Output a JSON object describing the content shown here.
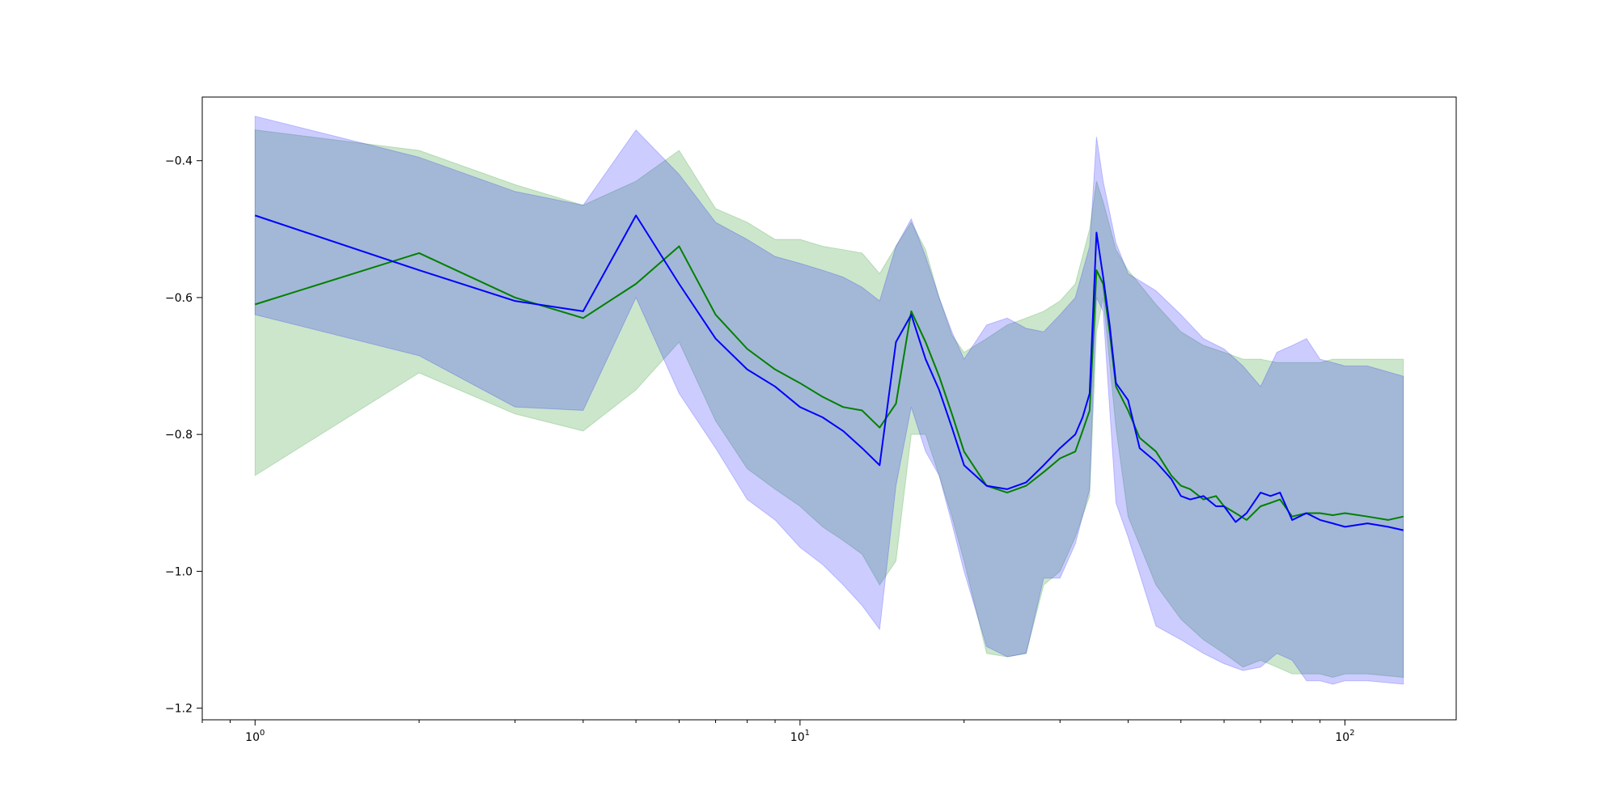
{
  "chart_data": {
    "type": "line",
    "title": "",
    "xlabel": "",
    "ylabel": "",
    "xscale": "log",
    "xlim": [
      0.8,
      160
    ],
    "ylim": [
      -1.217,
      -0.307
    ],
    "grid": false,
    "x_major_ticks": [
      {
        "value": 1,
        "base": "10",
        "exp": "0"
      },
      {
        "value": 10,
        "base": "10",
        "exp": "1"
      },
      {
        "value": 100,
        "base": "10",
        "exp": "2"
      }
    ],
    "y_ticks": [
      {
        "value": -0.4,
        "label": "−0.4"
      },
      {
        "value": -0.6,
        "label": "−0.6"
      },
      {
        "value": -0.8,
        "label": "−0.8"
      },
      {
        "value": -1.0,
        "label": "−1.0"
      },
      {
        "value": -1.2,
        "label": "−1.2"
      }
    ],
    "bands": [
      {
        "color": "#008000",
        "opacity": 0.2,
        "x": [
          1,
          2,
          3,
          4,
          5,
          6,
          7,
          8,
          9,
          10,
          11,
          12,
          13,
          14,
          15,
          16,
          17,
          18,
          19,
          20,
          22,
          24,
          26,
          28,
          30,
          32,
          34,
          35,
          36,
          38,
          40,
          45,
          50,
          55,
          60,
          65,
          70,
          75,
          80,
          85,
          90,
          95,
          100,
          110,
          128
        ],
        "upper": [
          -0.355,
          -0.385,
          -0.435,
          -0.465,
          -0.43,
          -0.385,
          -0.47,
          -0.49,
          -0.515,
          -0.515,
          -0.525,
          -0.53,
          -0.535,
          -0.565,
          -0.525,
          -0.49,
          -0.53,
          -0.6,
          -0.655,
          -0.68,
          -0.66,
          -0.64,
          -0.63,
          -0.62,
          -0.605,
          -0.58,
          -0.5,
          -0.43,
          -0.46,
          -0.53,
          -0.56,
          -0.61,
          -0.65,
          -0.67,
          -0.68,
          -0.69,
          -0.69,
          -0.695,
          -0.695,
          -0.695,
          -0.695,
          -0.69,
          -0.69,
          -0.69,
          -0.69
        ],
        "lower": [
          -0.86,
          -0.71,
          -0.77,
          -0.795,
          -0.735,
          -0.665,
          -0.78,
          -0.85,
          -0.88,
          -0.905,
          -0.935,
          -0.955,
          -0.975,
          -1.02,
          -0.985,
          -0.8,
          -0.8,
          -0.86,
          -0.92,
          -0.985,
          -1.12,
          -1.125,
          -1.12,
          -1.02,
          -1.0,
          -0.95,
          -0.89,
          -0.65,
          -0.6,
          -0.79,
          -0.92,
          -1.02,
          -1.07,
          -1.1,
          -1.12,
          -1.14,
          -1.13,
          -1.14,
          -1.15,
          -1.15,
          -1.15,
          -1.155,
          -1.15,
          -1.15,
          -1.155
        ]
      },
      {
        "color": "#0000ff",
        "opacity": 0.2,
        "x": [
          1,
          2,
          3,
          4,
          5,
          6,
          7,
          8,
          9,
          10,
          11,
          12,
          13,
          14,
          15,
          16,
          17,
          18,
          19,
          20,
          22,
          24,
          26,
          28,
          30,
          32,
          34,
          35,
          36,
          38,
          40,
          45,
          50,
          55,
          60,
          65,
          70,
          75,
          80,
          85,
          90,
          95,
          100,
          110,
          128
        ],
        "upper": [
          -0.335,
          -0.395,
          -0.445,
          -0.465,
          -0.355,
          -0.42,
          -0.49,
          -0.515,
          -0.54,
          -0.55,
          -0.56,
          -0.57,
          -0.585,
          -0.605,
          -0.525,
          -0.485,
          -0.54,
          -0.6,
          -0.65,
          -0.69,
          -0.64,
          -0.63,
          -0.645,
          -0.65,
          -0.625,
          -0.6,
          -0.525,
          -0.365,
          -0.43,
          -0.52,
          -0.565,
          -0.59,
          -0.625,
          -0.66,
          -0.675,
          -0.7,
          -0.73,
          -0.68,
          -0.67,
          -0.66,
          -0.69,
          -0.695,
          -0.7,
          -0.7,
          -0.715
        ],
        "lower": [
          -0.625,
          -0.685,
          -0.76,
          -0.765,
          -0.6,
          -0.74,
          -0.82,
          -0.895,
          -0.925,
          -0.965,
          -0.99,
          -1.02,
          -1.05,
          -1.085,
          -0.875,
          -0.76,
          -0.825,
          -0.86,
          -0.93,
          -1.0,
          -1.11,
          -1.125,
          -1.12,
          -1.01,
          -1.01,
          -0.96,
          -0.88,
          -0.6,
          -0.62,
          -0.9,
          -0.95,
          -1.08,
          -1.1,
          -1.12,
          -1.135,
          -1.145,
          -1.14,
          -1.12,
          -1.13,
          -1.16,
          -1.16,
          -1.165,
          -1.16,
          -1.16,
          -1.165
        ]
      }
    ],
    "series": [
      {
        "color": "#008000",
        "x": [
          1,
          2,
          3,
          4,
          5,
          6,
          7,
          8,
          9,
          10,
          11,
          12,
          13,
          14,
          15,
          16,
          17,
          18,
          19,
          20,
          22,
          24,
          26,
          28,
          30,
          32,
          33,
          34,
          35,
          36,
          37,
          38,
          40,
          42,
          45,
          48,
          50,
          52,
          55,
          58,
          60,
          63,
          66,
          70,
          73,
          76,
          80,
          85,
          90,
          95,
          100,
          110,
          120,
          128
        ],
        "y": [
          -0.61,
          -0.535,
          -0.6,
          -0.63,
          -0.58,
          -0.525,
          -0.625,
          -0.675,
          -0.705,
          -0.725,
          -0.745,
          -0.76,
          -0.765,
          -0.79,
          -0.755,
          -0.62,
          -0.665,
          -0.715,
          -0.77,
          -0.825,
          -0.875,
          -0.885,
          -0.875,
          -0.855,
          -0.835,
          -0.825,
          -0.795,
          -0.765,
          -0.56,
          -0.58,
          -0.65,
          -0.73,
          -0.765,
          -0.805,
          -0.825,
          -0.86,
          -0.875,
          -0.88,
          -0.895,
          -0.89,
          -0.905,
          -0.915,
          -0.925,
          -0.905,
          -0.9,
          -0.895,
          -0.92,
          -0.915,
          -0.915,
          -0.918,
          -0.915,
          -0.92,
          -0.925,
          -0.92
        ]
      },
      {
        "color": "#0000ff",
        "x": [
          1,
          2,
          3,
          4,
          5,
          6,
          7,
          8,
          9,
          10,
          11,
          12,
          13,
          14,
          15,
          16,
          17,
          18,
          19,
          20,
          22,
          24,
          26,
          28,
          30,
          32,
          33,
          34,
          35,
          36,
          37,
          38,
          40,
          42,
          45,
          48,
          50,
          52,
          55,
          58,
          60,
          63,
          66,
          70,
          73,
          76,
          80,
          85,
          90,
          95,
          100,
          110,
          120,
          128
        ],
        "y": [
          -0.48,
          -0.56,
          -0.605,
          -0.62,
          -0.48,
          -0.58,
          -0.66,
          -0.705,
          -0.73,
          -0.76,
          -0.775,
          -0.795,
          -0.82,
          -0.845,
          -0.665,
          -0.625,
          -0.69,
          -0.735,
          -0.79,
          -0.845,
          -0.875,
          -0.88,
          -0.87,
          -0.845,
          -0.82,
          -0.8,
          -0.775,
          -0.74,
          -0.505,
          -0.57,
          -0.64,
          -0.725,
          -0.75,
          -0.82,
          -0.84,
          -0.865,
          -0.89,
          -0.895,
          -0.89,
          -0.905,
          -0.905,
          -0.928,
          -0.915,
          -0.885,
          -0.89,
          -0.885,
          -0.925,
          -0.915,
          -0.925,
          -0.93,
          -0.935,
          -0.93,
          -0.935,
          -0.94
        ]
      }
    ]
  }
}
